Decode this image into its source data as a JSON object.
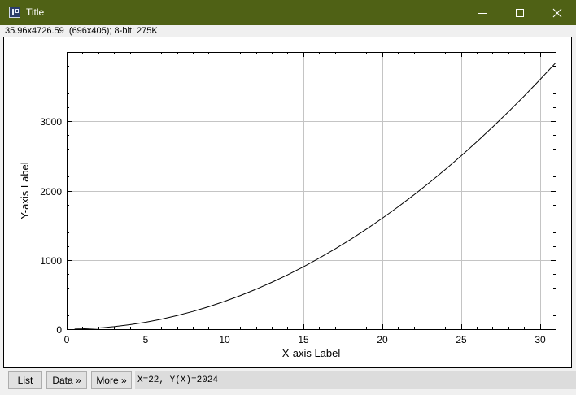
{
  "window": {
    "title": "Title",
    "icon": "imagej-icon"
  },
  "status": {
    "text": "35.96x4726.59  (696x405); 8-bit; 275K"
  },
  "chart_data": {
    "type": "line",
    "xlabel": "X-axis Label",
    "ylabel": "Y-axis Label",
    "xlim": [
      0,
      31
    ],
    "ylim": [
      0,
      4000
    ],
    "xticks": [
      0,
      5,
      10,
      15,
      20,
      25,
      30
    ],
    "xtick_labels": [
      "0",
      "5",
      "10",
      "15",
      "20",
      "25",
      "30"
    ],
    "yticks": [
      0,
      1000,
      2000,
      3000
    ],
    "ytick_labels": [
      "0",
      "1000",
      "2000",
      "3000"
    ],
    "grid": true,
    "series": [
      {
        "color": "#000000",
        "x": [
          0.5,
          1,
          2,
          3,
          4,
          5,
          6,
          7,
          8,
          9,
          10,
          11,
          12,
          13,
          14,
          15,
          16,
          17,
          18,
          19,
          20,
          21,
          22,
          23,
          24,
          25,
          26,
          27,
          28,
          29,
          30,
          31
        ],
        "y": [
          1,
          4,
          16,
          36,
          64,
          100,
          144,
          196,
          256,
          324,
          400,
          484,
          576,
          676,
          784,
          900,
          1024,
          1156,
          1296,
          1444,
          1600,
          1764,
          1936,
          2116,
          2304,
          2500,
          2704,
          2916,
          3136,
          3364,
          3600,
          3844
        ]
      }
    ]
  },
  "buttons": {
    "list": "List",
    "data": "Data »",
    "more": "More »"
  },
  "readout": {
    "text": "X=22, Y(X)=2024"
  }
}
